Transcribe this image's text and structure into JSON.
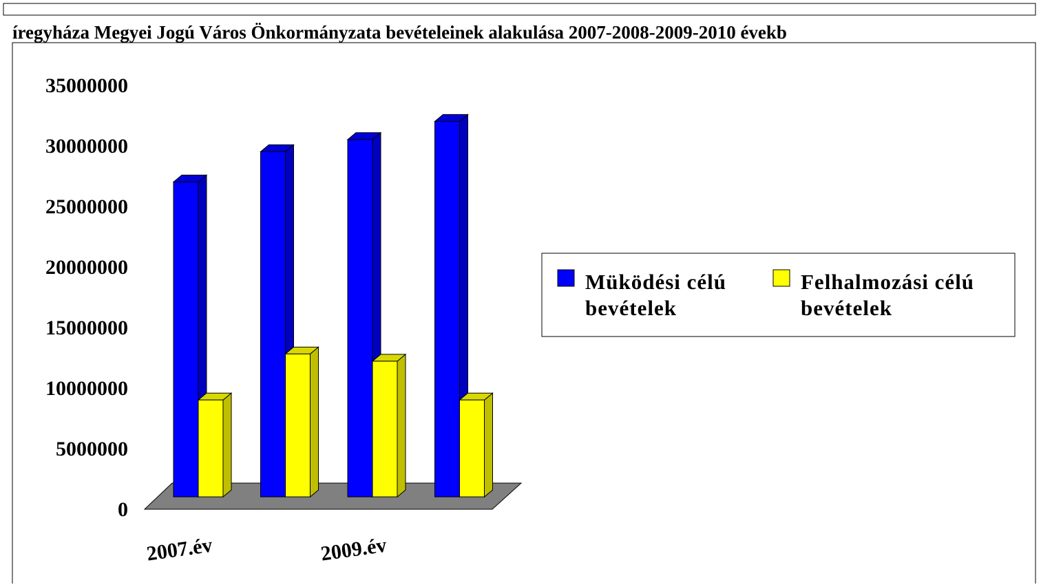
{
  "chart_data": {
    "type": "bar3d",
    "title": "íregyháza Megyei Jogú Város Önkormányzata bevételeinek alakulása 2007-2008-2009-2010 évekb",
    "categories": [
      "2007.év",
      null,
      "2009.év",
      null
    ],
    "series": [
      {
        "name": "Müködési célú bevételek",
        "color": "#0000ff",
        "values": [
          26000000,
          28500000,
          29500000,
          31000000
        ]
      },
      {
        "name": "Felhalmozási célú bevételek",
        "color": "#ffff00",
        "values": [
          8000000,
          11800000,
          11200000,
          8000000
        ]
      }
    ],
    "ylim": [
      0,
      35000000
    ],
    "yticks": [
      0,
      5000000,
      10000000,
      15000000,
      20000000,
      25000000,
      30000000,
      35000000
    ],
    "floor_color": "#808080"
  }
}
